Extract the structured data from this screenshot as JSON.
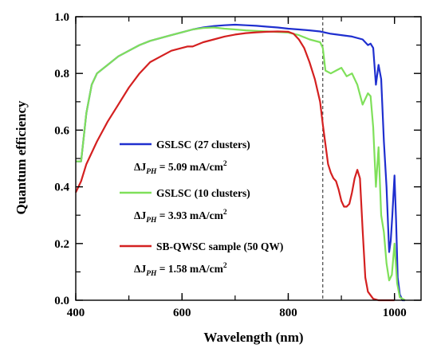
{
  "chart_data": {
    "type": "line",
    "xlabel": "Wavelength (nm)",
    "ylabel": "Quantum efficiency",
    "xlim": [
      400,
      1050
    ],
    "ylim": [
      0.0,
      1.0
    ],
    "grid": false,
    "legend_position": "center-left",
    "x_ticks": [
      "400",
      "600",
      "800",
      "1000"
    ],
    "y_ticks": [
      "0.0",
      "0.2",
      "0.4",
      "0.6",
      "0.8",
      "1.0"
    ],
    "reference_line": {
      "x": 865,
      "style": "dashed"
    },
    "series": [
      {
        "name": "GSLSC (27 clusters)",
        "note_prefix": "ΔJ",
        "note_sub": "PH",
        "note_value": " = 5.09 mA/cm",
        "note_sup": "2",
        "color": "#1f2fcf",
        "x": [
          400,
          410,
          420,
          430,
          440,
          460,
          480,
          500,
          520,
          540,
          560,
          580,
          600,
          620,
          640,
          660,
          680,
          700,
          720,
          740,
          760,
          780,
          800,
          820,
          840,
          860,
          880,
          900,
          920,
          940,
          950,
          955,
          960,
          965,
          970,
          975,
          980,
          985,
          990,
          993,
          996,
          1000,
          1003,
          1006,
          1010,
          1015,
          1020
        ],
        "values": [
          0.49,
          0.49,
          0.66,
          0.76,
          0.8,
          0.83,
          0.86,
          0.88,
          0.9,
          0.915,
          0.925,
          0.935,
          0.945,
          0.955,
          0.962,
          0.967,
          0.97,
          0.972,
          0.97,
          0.968,
          0.965,
          0.962,
          0.958,
          0.955,
          0.952,
          0.948,
          0.94,
          0.935,
          0.93,
          0.92,
          0.9,
          0.905,
          0.89,
          0.76,
          0.83,
          0.78,
          0.56,
          0.4,
          0.17,
          0.21,
          0.3,
          0.44,
          0.28,
          0.08,
          0.02,
          0.0,
          0.0
        ]
      },
      {
        "name": "GSLSC (10 clusters)",
        "note_prefix": "ΔJ",
        "note_sub": "PH",
        "note_value": " = 3.93 mA/cm",
        "note_sup": "2",
        "color": "#7fe05a",
        "x": [
          400,
          410,
          420,
          430,
          440,
          460,
          480,
          500,
          520,
          540,
          560,
          580,
          600,
          620,
          640,
          660,
          680,
          700,
          720,
          740,
          760,
          780,
          800,
          820,
          840,
          860,
          865,
          870,
          880,
          890,
          900,
          910,
          920,
          930,
          940,
          950,
          955,
          960,
          965,
          970,
          975,
          980,
          985,
          990,
          995,
          1000,
          1005,
          1010,
          1020
        ],
        "values": [
          0.49,
          0.49,
          0.66,
          0.76,
          0.8,
          0.83,
          0.86,
          0.88,
          0.9,
          0.915,
          0.925,
          0.935,
          0.945,
          0.955,
          0.96,
          0.962,
          0.958,
          0.955,
          0.952,
          0.95,
          0.948,
          0.946,
          0.944,
          0.935,
          0.92,
          0.91,
          0.89,
          0.81,
          0.8,
          0.81,
          0.82,
          0.79,
          0.8,
          0.76,
          0.69,
          0.73,
          0.72,
          0.61,
          0.4,
          0.54,
          0.3,
          0.24,
          0.13,
          0.07,
          0.09,
          0.2,
          0.06,
          0.01,
          0.0
        ]
      },
      {
        "name": "SB-QWSC sample (50 QW)",
        "note_prefix": "ΔJ",
        "note_sub": "PH",
        "note_value": " = 1.58 mA/cm",
        "note_sup": "2",
        "color": "#d42020",
        "x": [
          400,
          410,
          420,
          440,
          460,
          480,
          500,
          520,
          540,
          560,
          580,
          600,
          610,
          620,
          640,
          660,
          680,
          700,
          720,
          740,
          760,
          780,
          800,
          810,
          820,
          830,
          840,
          850,
          860,
          865,
          870,
          875,
          880,
          885,
          890,
          895,
          900,
          905,
          910,
          915,
          920,
          925,
          930,
          935,
          940,
          945,
          950,
          960,
          970,
          980,
          1000
        ],
        "values": [
          0.38,
          0.42,
          0.48,
          0.56,
          0.63,
          0.69,
          0.75,
          0.8,
          0.84,
          0.86,
          0.88,
          0.89,
          0.895,
          0.895,
          0.91,
          0.92,
          0.93,
          0.937,
          0.942,
          0.945,
          0.947,
          0.948,
          0.947,
          0.94,
          0.92,
          0.89,
          0.84,
          0.78,
          0.7,
          0.62,
          0.55,
          0.48,
          0.45,
          0.43,
          0.42,
          0.39,
          0.35,
          0.33,
          0.33,
          0.34,
          0.38,
          0.43,
          0.46,
          0.43,
          0.25,
          0.08,
          0.03,
          0.005,
          0.0,
          0.0,
          0.0
        ]
      }
    ]
  }
}
